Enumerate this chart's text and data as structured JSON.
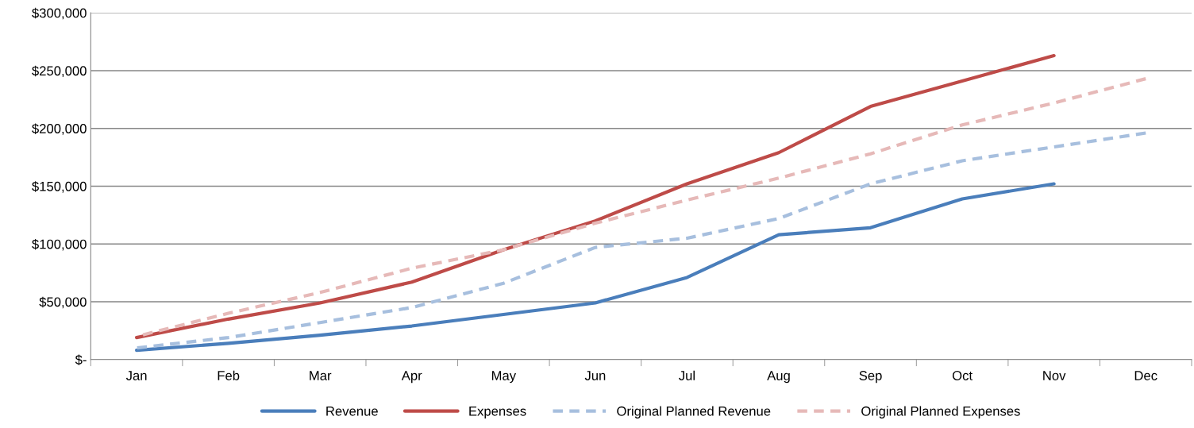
{
  "chart_data": {
    "type": "line",
    "categories": [
      "Jan",
      "Feb",
      "Mar",
      "Apr",
      "May",
      "Jun",
      "Jul",
      "Aug",
      "Sep",
      "Oct",
      "Nov",
      "Dec"
    ],
    "series": [
      {
        "name": "Revenue",
        "color": "#4a7ebb",
        "line_style": "solid",
        "values": [
          8000,
          14000,
          21000,
          29000,
          39000,
          49000,
          71000,
          108000,
          114000,
          139000,
          152000,
          null
        ]
      },
      {
        "name": "Expenses",
        "color": "#be4b48",
        "line_style": "solid",
        "values": [
          19000,
          35000,
          49000,
          67000,
          95000,
          120000,
          152000,
          179000,
          219000,
          241000,
          263000,
          null
        ]
      },
      {
        "name": "Original Planned Revenue",
        "color": "#a7bfde",
        "line_style": "dashed",
        "values": [
          10000,
          19000,
          32000,
          45000,
          66000,
          97000,
          105000,
          122000,
          152000,
          172000,
          184000,
          196000
        ]
      },
      {
        "name": "Original Planned Expenses",
        "color": "#e6b9b8",
        "line_style": "dashed",
        "values": [
          20000,
          40000,
          58000,
          79000,
          95000,
          118000,
          138000,
          157000,
          178000,
          203000,
          222000,
          243000
        ]
      }
    ],
    "ylim": [
      0,
      300000
    ],
    "yticks": [
      {
        "value": 0,
        "label": "$-"
      },
      {
        "value": 50000,
        "label": "$50,000"
      },
      {
        "value": 100000,
        "label": "$100,000"
      },
      {
        "value": 150000,
        "label": "$150,000"
      },
      {
        "value": 200000,
        "label": "$200,000"
      },
      {
        "value": 250000,
        "label": "$250,000"
      },
      {
        "value": 300000,
        "label": "$300,000"
      }
    ],
    "grid": "y",
    "legend": "bottom",
    "marker": "none"
  }
}
